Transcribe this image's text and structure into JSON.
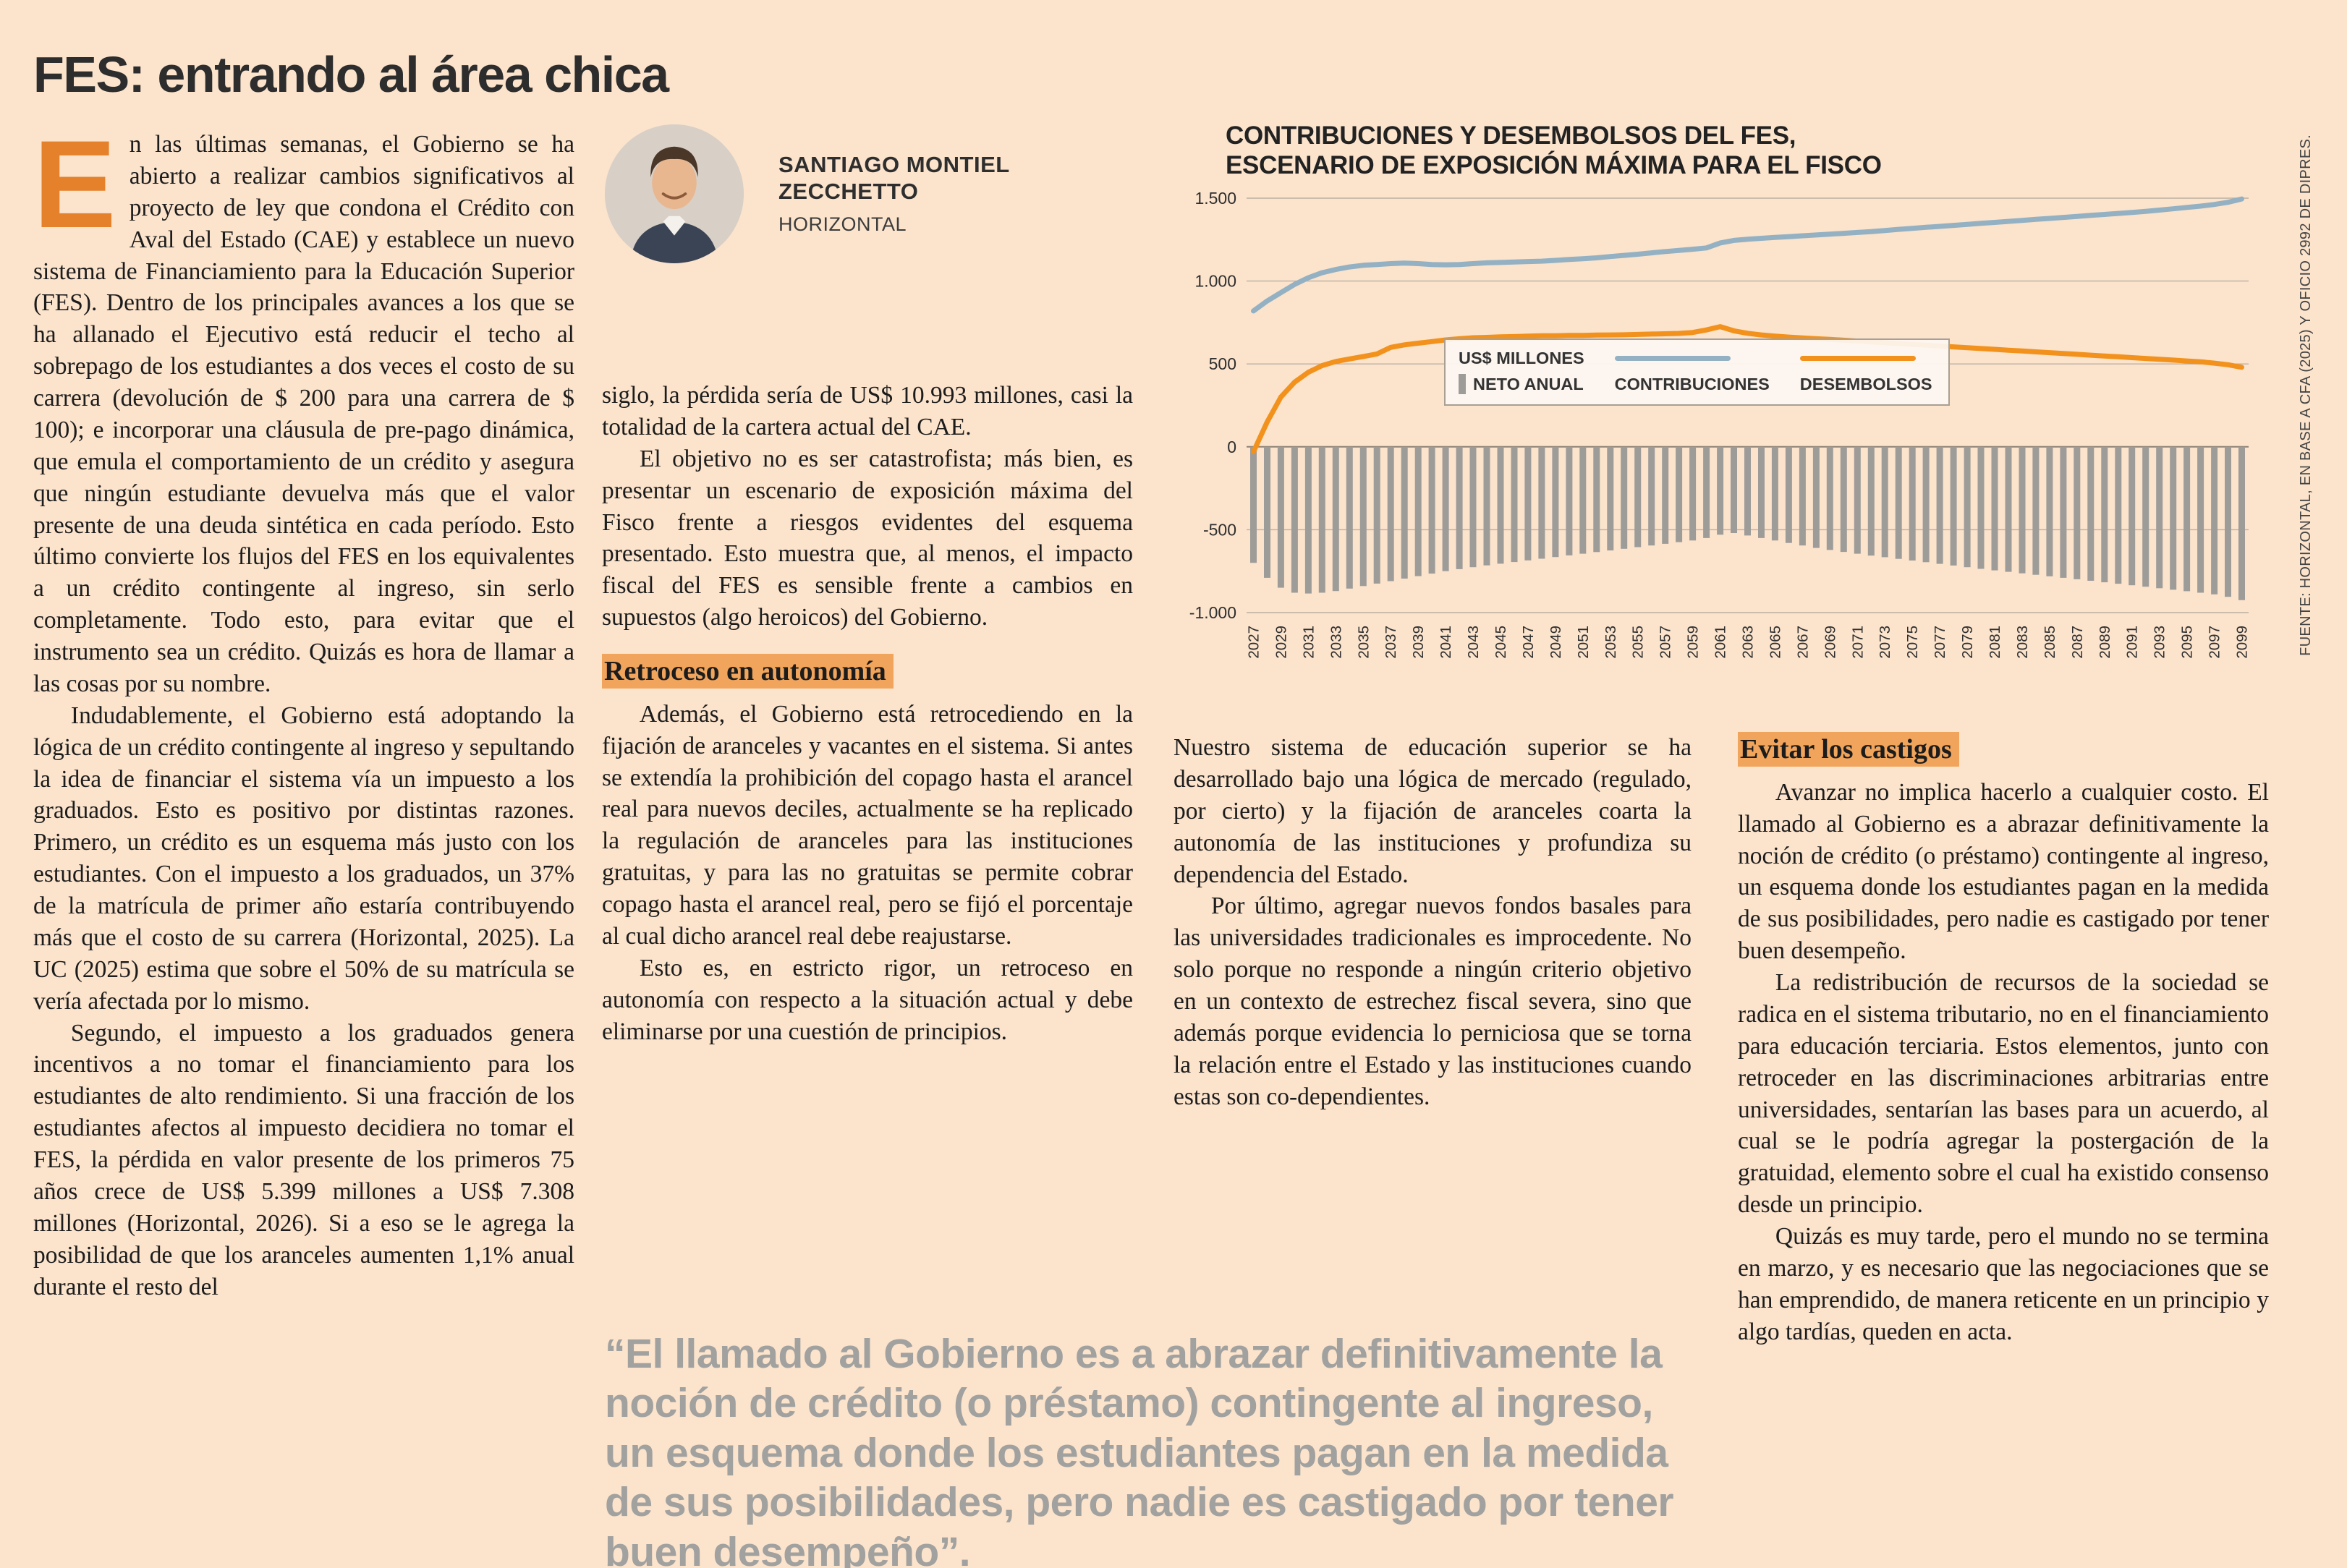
{
  "page": {
    "title": "FES: entrando al área chica"
  },
  "byline": {
    "name_line1": "SANTIAGO MONTIEL",
    "name_line2": "ZECCHETTO",
    "org": "HORIZONTAL"
  },
  "article": {
    "drop_cap": "E",
    "col1_paragraphs": [
      "n las últimas semanas, el Gobierno se ha abierto a realizar cambios significativos al proyecto de ley que condona el Crédito con Aval del Estado (CAE) y establece un nuevo sistema de Financiamiento para la Educación Superior (FES). Dentro de los principales avances a los que se ha allanado el Ejecutivo está reducir el techo al sobrepago de los estudiantes a dos veces el costo de su carrera (devolución de $ 200 para una carrera de $ 100); e incorporar una cláusula de pre-pago dinámica, que emula el comportamiento de un crédito y asegura que ningún estudiante devuelva más que el valor presente de una deuda sintética en cada período. Esto último convierte los flujos del FES en los equivalentes a un crédito contingente al ingreso, sin serlo completamente. Todo esto, para evitar que el instrumento sea un crédito. Quizás es hora de llamar a las cosas por su nombre.",
      "Indudablemente, el Gobierno está adoptando la lógica de un crédito contingente al ingreso y sepultando la idea de financiar el sistema vía un impuesto a los graduados. Esto es positivo por distintas razones. Primero, un crédito es un esquema más justo con los estudiantes. Con el impuesto a los graduados, un 37% de la matrícula de primer año estaría contribuyendo más que el costo de su carrera (Horizontal, 2025). La UC (2025) estima que sobre el 50% de su matrícula se vería afectada por lo mismo.",
      "Segundo, el impuesto a los graduados genera incentivos a no tomar el financiamiento para los estudiantes de alto rendimiento. Si una fracción de los estudiantes afectos al impuesto decidiera no tomar el FES, la pérdida en valor presente de los primeros 75 años crece de US$ 5.399 millones a US$ 7.308 millones (Horizontal, 2026). Si a eso se le agrega la posibilidad de que los aranceles aumenten 1,1% anual durante el resto del"
    ],
    "col2_paragraphs_top": [
      "siglo, la pérdida sería de US$ 10.993 millones, casi la totalidad de la cartera actual del CAE.",
      "El objetivo no es ser catastrofista; más bien, es presentar un escenario de exposición máxima del Fisco frente a riesgos evidentes del esquema presentado. Esto muestra que, al menos, el impacto fiscal del FES es sensible frente a cambios en supuestos (algo heroicos) del Gobierno."
    ],
    "section1_heading": "Retroceso en autonomía",
    "col2_paragraphs_bottom": [
      "Además, el Gobierno está retrocediendo en la fijación de aranceles y vacantes en el sistema. Si antes se extendía la prohibición del copago hasta el arancel real para nuevos deciles, actualmente se ha replicado la regulación de aranceles para las instituciones gratuitas, y para las no gratuitas se permite cobrar copago hasta el arancel real, pero se fijó el porcentaje al cual dicho arancel real debe reajustarse.",
      "Esto es, en estricto rigor, un retroceso en autonomía con respecto a la situación actual y debe eliminarse por una cuestión de principios."
    ],
    "col3_paragraphs": [
      "Nuestro sistema de educación superior se ha desarrollado bajo una lógica de mercado (regulado, por cierto) y la fijación de aranceles coarta la autonomía de las instituciones y profundiza su dependencia del Estado.",
      "Por último, agregar nuevos fondos basales para las universidades tradicionales es improcedente. No solo porque no responde a ningún criterio objetivo en un contexto de estrechez fiscal severa, sino que además porque evidencia lo perniciosa que se torna la relación entre el Estado y las instituciones cuando estas son co-dependientes."
    ],
    "section2_heading": "Evitar los castigos",
    "col4_paragraphs": [
      "Avanzar no implica hacerlo a cualquier costo. El llamado al Gobierno es a abrazar definitivamente la noción de crédito (o préstamo) contingente al ingreso, un esquema donde los estudiantes pagan en la medida de sus posibilidades, pero nadie es castigado por tener buen desempeño.",
      "La redistribución de recursos de la sociedad se radica en el sistema tributario, no en el financiamiento para educación terciaria. Estos elementos, junto con retroceder en las discriminaciones arbitrarias entre universidades, sentarían las bases para un acuerdo, al cual se le podría agregar la postergación de la gratuidad, elemento sobre el cual ha existido consenso desde un principio.",
      "Quizás es muy tarde, pero el mundo no se termina en marzo, y es necesario que las negociaciones que se han emprendido, de manera reticente en un principio y algo tardías, queden en acta."
    ]
  },
  "pull_quote": "“El llamado al Gobierno es a abrazar definitivamente la noción de crédito (o préstamo) contingente al ingreso, un esquema donde los estudiantes pagan en la medida de sus posibilidades, pero nadie es castigado por tener buen desempeño”.",
  "chart_data": {
    "type": "bar+line",
    "title_line1": "CONTRIBUCIONES Y DESEMBOLSOS DEL FES,",
    "title_line2": "ESCENARIO DE EXPOSICIÓN MÁXIMA PARA EL FISCO",
    "unit_label": "US$ MILLONES",
    "legend": [
      "NETO ANUAL",
      "CONTRIBUCIONES",
      "DESEMBOLSOS"
    ],
    "source": "FUENTE: HORIZONTAL, EN BASE A CFA (2025) Y OFICIO 2992 DE DIPRES.",
    "ylim": [
      -1000,
      1500
    ],
    "yticks": [
      1500,
      1000,
      500,
      0,
      -500,
      -1000
    ],
    "ytick_labels": [
      "1.500",
      "1.000",
      "500",
      "0",
      "-500",
      "-1.000"
    ],
    "x_start": 2027,
    "x_end": 2099,
    "xtick_step": 2,
    "grid": true,
    "legend_position": "inside-left",
    "years": [
      2027,
      2028,
      2029,
      2030,
      2031,
      2032,
      2033,
      2034,
      2035,
      2036,
      2037,
      2038,
      2039,
      2040,
      2041,
      2042,
      2043,
      2044,
      2045,
      2046,
      2047,
      2048,
      2049,
      2050,
      2051,
      2052,
      2053,
      2054,
      2055,
      2056,
      2057,
      2058,
      2059,
      2060,
      2061,
      2062,
      2063,
      2064,
      2065,
      2066,
      2067,
      2068,
      2069,
      2070,
      2071,
      2072,
      2073,
      2074,
      2075,
      2076,
      2077,
      2078,
      2079,
      2080,
      2081,
      2082,
      2083,
      2084,
      2085,
      2086,
      2087,
      2088,
      2089,
      2090,
      2091,
      2092,
      2093,
      2094,
      2095,
      2096,
      2097,
      2098,
      2099
    ],
    "series": [
      {
        "name": "NETO ANUAL",
        "type": "bar",
        "color": "#9e9c99",
        "values": [
          -700,
          -790,
          -850,
          -880,
          -885,
          -880,
          -870,
          -855,
          -840,
          -825,
          -810,
          -795,
          -780,
          -765,
          -750,
          -738,
          -726,
          -715,
          -705,
          -695,
          -685,
          -675,
          -665,
          -655,
          -645,
          -635,
          -625,
          -615,
          -605,
          -595,
          -585,
          -575,
          -565,
          -550,
          -530,
          -520,
          -535,
          -550,
          -565,
          -580,
          -595,
          -610,
          -622,
          -634,
          -645,
          -656,
          -666,
          -676,
          -686,
          -696,
          -706,
          -716,
          -726,
          -736,
          -745,
          -754,
          -763,
          -772,
          -781,
          -790,
          -799,
          -808,
          -817,
          -826,
          -835,
          -844,
          -853,
          -862,
          -871,
          -880,
          -890,
          -905,
          -925
        ]
      },
      {
        "name": "CONTRIBUCIONES",
        "type": "line",
        "color": "#93b1c3",
        "values": [
          820,
          880,
          930,
          980,
          1020,
          1050,
          1070,
          1085,
          1095,
          1100,
          1105,
          1108,
          1105,
          1100,
          1098,
          1100,
          1105,
          1110,
          1112,
          1115,
          1118,
          1120,
          1125,
          1130,
          1135,
          1140,
          1148,
          1155,
          1162,
          1170,
          1178,
          1185,
          1192,
          1200,
          1230,
          1245,
          1252,
          1258,
          1263,
          1268,
          1273,
          1278,
          1283,
          1288,
          1293,
          1298,
          1305,
          1312,
          1318,
          1324,
          1330,
          1336,
          1342,
          1348,
          1354,
          1360,
          1366,
          1372,
          1378,
          1384,
          1390,
          1396,
          1402,
          1408,
          1414,
          1420,
          1428,
          1436,
          1444,
          1452,
          1462,
          1475,
          1495
        ]
      },
      {
        "name": "DESEMBOLSOS",
        "type": "line",
        "color": "#f2921d",
        "values": [
          -30,
          150,
          300,
          390,
          450,
          490,
          515,
          530,
          545,
          560,
          600,
          615,
          625,
          635,
          645,
          652,
          658,
          660,
          663,
          665,
          668,
          670,
          670,
          672,
          672,
          674,
          675,
          676,
          678,
          680,
          682,
          684,
          690,
          705,
          725,
          700,
          685,
          675,
          668,
          662,
          657,
          652,
          648,
          643,
          638,
          633,
          628,
          623,
          618,
          613,
          608,
          603,
          598,
          593,
          588,
          583,
          578,
          573,
          568,
          563,
          558,
          553,
          548,
          543,
          538,
          533,
          528,
          523,
          518,
          513,
          505,
          495,
          480
        ]
      }
    ]
  }
}
